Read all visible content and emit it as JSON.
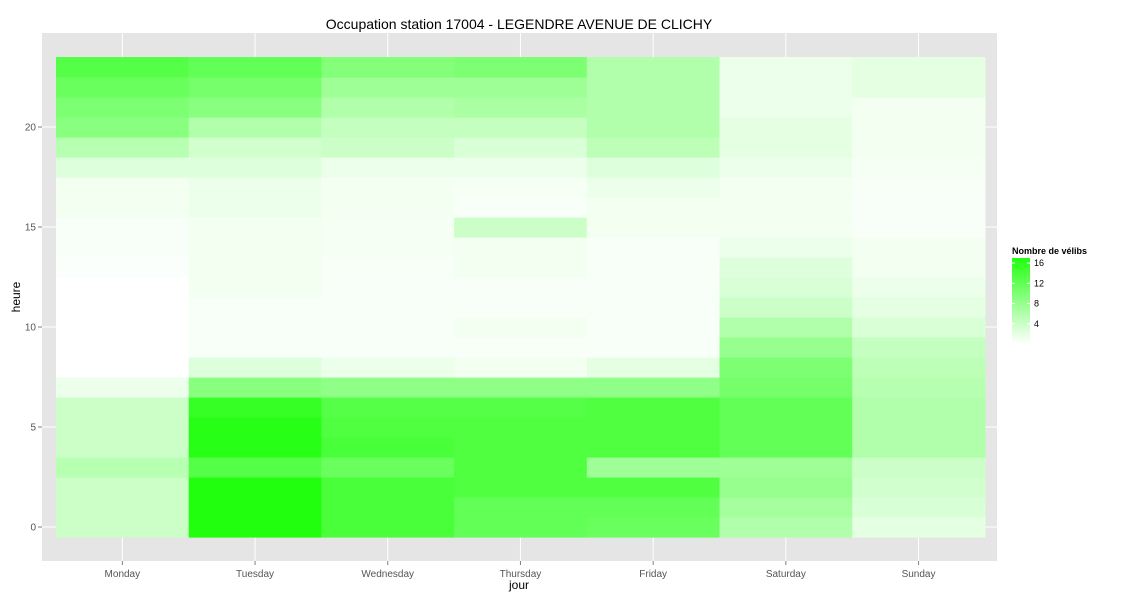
{
  "chart_data": {
    "type": "heatmap",
    "title": "Occupation station 17004 - LEGENDRE AVENUE DE CLICHY",
    "xlabel": "jour",
    "ylabel": "heure",
    "x_categories": [
      "Monday",
      "Tuesday",
      "Wednesday",
      "Thursday",
      "Friday",
      "Saturday",
      "Sunday"
    ],
    "y_range": [
      0,
      23
    ],
    "y_ticks": [
      0,
      5,
      10,
      15,
      20
    ],
    "grid": true,
    "legend": {
      "title": "Nombre de vélibs",
      "position": "right",
      "ticks": [
        4,
        8,
        12,
        16
      ],
      "min_value": 0,
      "max_value": 17,
      "low_color": "#ffffff",
      "high_color": "#21ff0f"
    },
    "values": [
      [
        4.0,
        17.0,
        14.0,
        12.0,
        11.5,
        6.0,
        2.0
      ],
      [
        4.0,
        17.0,
        14.0,
        12.0,
        12.0,
        7.0,
        3.0
      ],
      [
        4.0,
        17.0,
        14.0,
        13.5,
        13.5,
        8.0,
        3.5
      ],
      [
        5.5,
        13.0,
        11.5,
        13.5,
        7.5,
        7.5,
        4.0
      ],
      [
        4.0,
        16.5,
        14.0,
        13.5,
        13.5,
        12.0,
        6.0
      ],
      [
        4.0,
        16.5,
        13.5,
        13.5,
        13.5,
        12.0,
        6.0
      ],
      [
        4.0,
        15.5,
        13.0,
        13.0,
        13.5,
        12.0,
        6.0
      ],
      [
        1.5,
        9.0,
        8.5,
        8.5,
        8.5,
        10.5,
        5.5
      ],
      [
        0.1,
        2.5,
        1.5,
        1.0,
        2.0,
        10.0,
        5.0
      ],
      [
        0.1,
        0.5,
        0.5,
        0.5,
        0.5,
        8.0,
        4.5
      ],
      [
        0.1,
        0.5,
        0.5,
        1.0,
        0.5,
        6.0,
        3.0
      ],
      [
        0.1,
        0.5,
        0.5,
        0.5,
        0.5,
        4.0,
        2.0
      ],
      [
        0.1,
        1.0,
        0.5,
        0.5,
        0.5,
        3.0,
        1.5
      ],
      [
        0.3,
        1.0,
        0.5,
        1.0,
        0.5,
        2.5,
        1.0
      ],
      [
        0.5,
        1.0,
        0.8,
        1.0,
        0.5,
        1.5,
        1.0
      ],
      [
        0.5,
        1.0,
        0.8,
        4.0,
        1.0,
        1.0,
        0.5
      ],
      [
        1.0,
        1.5,
        1.0,
        0.5,
        1.0,
        1.0,
        0.5
      ],
      [
        1.0,
        1.5,
        1.0,
        0.8,
        1.5,
        1.0,
        0.5
      ],
      [
        2.5,
        2.5,
        1.5,
        1.5,
        2.5,
        1.5,
        0.8
      ],
      [
        5.5,
        3.5,
        4.0,
        3.0,
        5.0,
        2.0,
        1.0
      ],
      [
        9.0,
        6.0,
        4.5,
        4.5,
        6.0,
        2.0,
        1.0
      ],
      [
        10.0,
        9.0,
        6.0,
        6.5,
        6.0,
        1.5,
        1.0
      ],
      [
        11.5,
        10.5,
        7.5,
        7.5,
        6.0,
        1.5,
        2.0
      ],
      [
        13.0,
        12.0,
        9.5,
        10.0,
        6.0,
        1.5,
        2.0
      ]
    ]
  }
}
